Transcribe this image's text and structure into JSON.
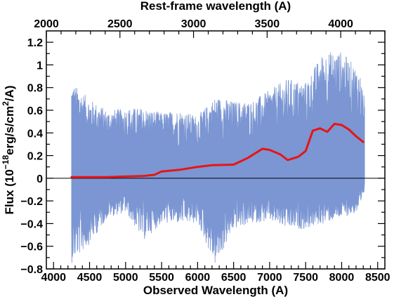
{
  "chart_data": {
    "type": "line",
    "title": "",
    "xlabel": "Observed Wavelength (A)",
    "x2label": "Rest-frame wavelength (A)",
    "ylabel_parts": {
      "prefix": "Flux (10",
      "exp": "−18",
      "mid": "erg/s/cm",
      "exp2": "2",
      "suffix": "/A)"
    },
    "xlim": [
      3900,
      8600
    ],
    "ylim": [
      -0.8,
      1.3
    ],
    "x2lim": [
      2000,
      4300
    ],
    "xticks": [
      4000,
      4500,
      5000,
      5500,
      6000,
      6500,
      7000,
      7500,
      8000,
      8500
    ],
    "x2ticks": [
      2000,
      2500,
      3000,
      3500,
      4000
    ],
    "yticks": [
      -0.8,
      -0.6,
      -0.4,
      -0.2,
      0,
      0.2,
      0.4,
      0.6,
      0.8,
      1,
      1.2
    ],
    "ytick_labels": [
      "−0.8",
      "−0.6",
      "−0.4",
      "−0.2",
      "0",
      "0.2",
      "0.4",
      "0.6",
      "0.8",
      "1",
      "1.2"
    ],
    "colors": {
      "spectrum": "#7b96d3",
      "model": "#e81414",
      "zero_line": "#000000"
    },
    "zero_line": 0,
    "spectrum_band": {
      "x": [
        4250,
        4500,
        4750,
        5000,
        5250,
        5500,
        5750,
        6000,
        6250,
        6500,
        6750,
        7000,
        7250,
        7500,
        7750,
        8000,
        8250,
        8320
      ],
      "upper": [
        0.85,
        0.7,
        0.6,
        0.62,
        0.62,
        0.58,
        0.6,
        0.55,
        0.72,
        0.68,
        0.68,
        0.78,
        0.88,
        0.85,
        1.12,
        1.12,
        0.95,
        0.7
      ],
      "lower": [
        -0.75,
        -0.58,
        -0.35,
        -0.3,
        -0.55,
        -0.4,
        -0.4,
        -0.4,
        -0.78,
        -0.45,
        -0.4,
        -0.38,
        -0.45,
        -0.45,
        -0.4,
        -0.35,
        -0.3,
        -0.1
      ]
    },
    "series": [
      {
        "name": "",
        "color": "#e81414",
        "x": [
          4250,
          4500,
          4750,
          5000,
          5250,
          5400,
          5500,
          5750,
          6000,
          6200,
          6500,
          6700,
          6900,
          7000,
          7150,
          7250,
          7400,
          7500,
          7600,
          7700,
          7800,
          7900,
          8000,
          8100,
          8200,
          8300
        ],
        "y": [
          0.01,
          0.01,
          0.01,
          0.015,
          0.02,
          0.03,
          0.06,
          0.075,
          0.1,
          0.115,
          0.12,
          0.18,
          0.26,
          0.25,
          0.21,
          0.16,
          0.19,
          0.24,
          0.42,
          0.44,
          0.41,
          0.48,
          0.47,
          0.43,
          0.37,
          0.32
        ]
      }
    ]
  }
}
